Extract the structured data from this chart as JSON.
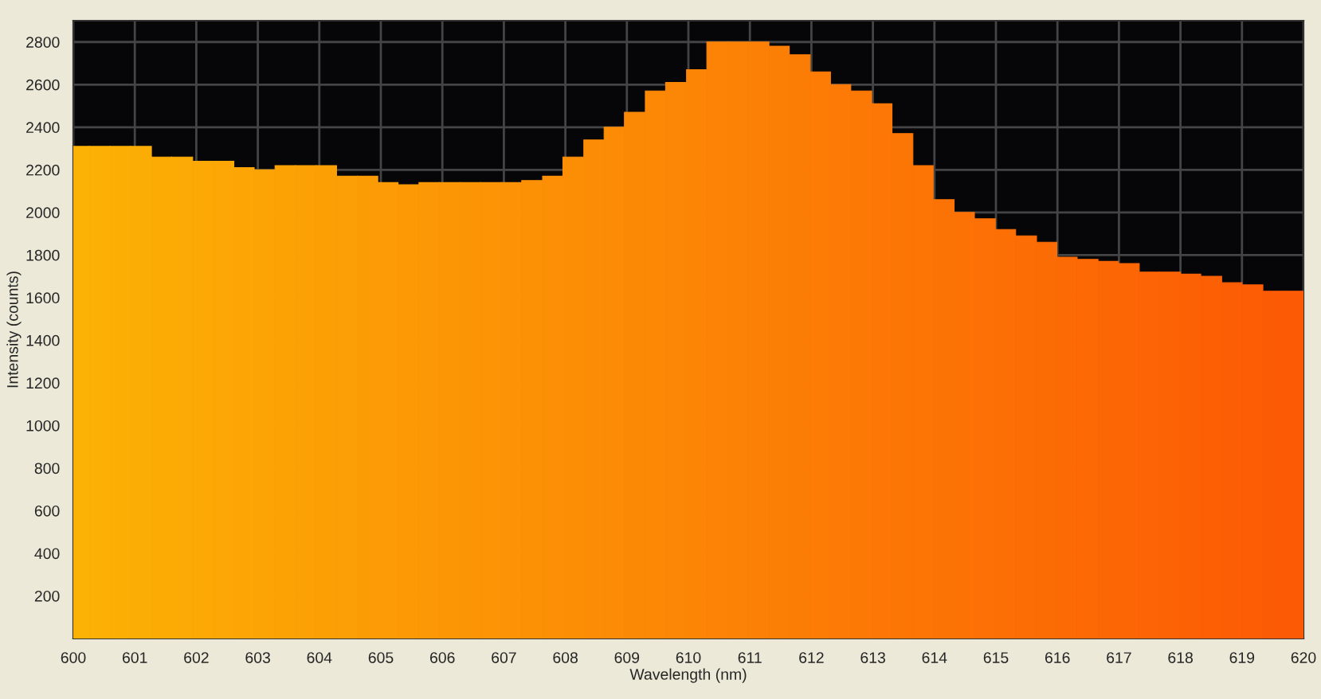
{
  "chart_data": {
    "type": "histogram",
    "xlabel": "Wavelength (nm)",
    "ylabel": "Intensity (counts)",
    "bins": [
      600,
      600.26,
      600.6,
      600.93,
      601.27,
      601.6,
      601.94,
      602.27,
      602.61,
      602.94,
      603.28,
      603.61,
      603.95,
      604.28,
      604.62,
      604.95,
      605.28,
      605.62,
      605.95,
      606.29,
      606.62,
      606.96,
      607.29,
      607.63,
      607.96,
      608.3,
      608.63,
      608.96,
      609.3,
      609.63,
      609.97,
      610.3,
      610.64,
      610.97,
      611.31,
      611.64,
      611.98,
      612.31,
      612.64,
      612.98,
      613.31,
      613.65,
      613.98,
      614.32,
      614.65,
      614.99,
      615.32,
      615.66,
      615.99,
      616.32,
      616.66,
      616.99,
      617.33,
      617.66,
      618.0,
      618.33,
      618.67,
      619.0,
      619.34,
      619.67,
      620
    ],
    "values": [
      2310,
      2310,
      2310,
      2310,
      2260,
      2260,
      2240,
      2240,
      2210,
      2200,
      2220,
      2220,
      2220,
      2170,
      2170,
      2140,
      2130,
      2140,
      2140,
      2140,
      2140,
      2140,
      2150,
      2170,
      2260,
      2340,
      2400,
      2470,
      2570,
      2610,
      2670,
      2800,
      2800,
      2800,
      2780,
      2740,
      2660,
      2600,
      2570,
      2510,
      2370,
      2220,
      2060,
      2000,
      1970,
      1920,
      1890,
      1860,
      1790,
      1780,
      1770,
      1760,
      1720,
      1720,
      1710,
      1700,
      1670,
      1660,
      1630,
      1630
    ],
    "colors": [
      "#fcb105",
      "#fcb005",
      "#fcae05",
      "#fcad05",
      "#fcab05",
      "#fcaa05",
      "#fca805",
      "#fca705",
      "#fca505",
      "#fca405",
      "#fca205",
      "#fca105",
      "#fc9f05",
      "#fc9e05",
      "#fc9c05",
      "#fc9b05",
      "#fc9905",
      "#fc9805",
      "#fc9605",
      "#fc9505",
      "#fc9405",
      "#fc9205",
      "#fc9105",
      "#fc8f05",
      "#fc8e05",
      "#fc8c05",
      "#fc8b05",
      "#fc8905",
      "#fc8805",
      "#fc8605",
      "#fc8505",
      "#fc8305",
      "#fc8205",
      "#fc8005",
      "#fc7f05",
      "#fc7d05",
      "#fc7c05",
      "#fc7a05",
      "#fc7905",
      "#fc7705",
      "#fc7605",
      "#fc7505",
      "#fc7305",
      "#fc7205",
      "#fc7005",
      "#fc6f05",
      "#fc6d05",
      "#fc6c05",
      "#fc6a05",
      "#fc6905",
      "#fc6705",
      "#fc6605",
      "#fc6405",
      "#fc6305",
      "#fc6105",
      "#fc6005",
      "#fc5e05",
      "#fc5d05",
      "#fc5b05",
      "#fc5a05"
    ],
    "xlim": [
      600,
      620
    ],
    "xticks": [
      600,
      601,
      602,
      603,
      604,
      605,
      606,
      607,
      608,
      609,
      610,
      611,
      612,
      613,
      614,
      615,
      616,
      617,
      618,
      619,
      620
    ],
    "ylim": [
      0,
      2900
    ],
    "yticks": [
      200,
      400,
      600,
      800,
      1000,
      1200,
      1400,
      1600,
      1800,
      2000,
      2200,
      2400,
      2600,
      2800
    ],
    "grid": true
  }
}
